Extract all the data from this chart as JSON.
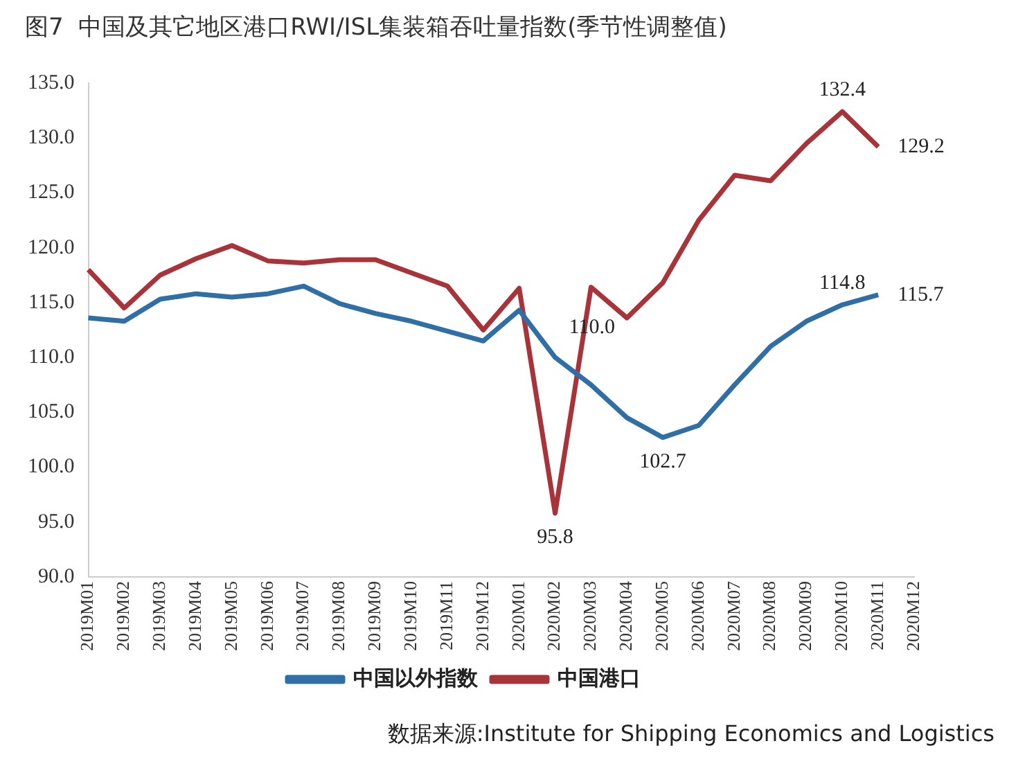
{
  "chart_data": {
    "type": "line",
    "title": "图7  中国及其它地区港口RWI/ISL集装箱吞吐量指数(季节性调整值)",
    "categories": [
      "2019M01",
      "2019M02",
      "2019M03",
      "2019M04",
      "2019M05",
      "2019M06",
      "2019M07",
      "2019M08",
      "2019M09",
      "2019M10",
      "2019M11",
      "2019M12",
      "2020M01",
      "2020M02",
      "2020M03",
      "2020M04",
      "2020M05",
      "2020M06",
      "2020M07",
      "2020M08",
      "2020M09",
      "2020M10",
      "2020M11",
      "2020M12"
    ],
    "series": [
      {
        "name": "中国以外指数",
        "color": "#2f6fa6",
        "values": [
          113.6,
          113.3,
          115.3,
          115.8,
          115.5,
          115.8,
          116.5,
          114.9,
          114.0,
          113.3,
          112.4,
          111.5,
          114.3,
          110.0,
          107.5,
          104.5,
          102.7,
          103.8,
          107.5,
          111.0,
          113.3,
          114.8,
          115.7,
          null
        ],
        "value_labels": [
          null,
          null,
          null,
          null,
          null,
          null,
          null,
          null,
          null,
          null,
          null,
          null,
          null,
          "110.0",
          null,
          null,
          "102.7",
          null,
          null,
          null,
          null,
          "114.8",
          "115.7",
          null
        ]
      },
      {
        "name": "中国港口",
        "color": "#a8343a",
        "values": [
          118.0,
          114.5,
          117.5,
          119.0,
          120.2,
          118.8,
          118.6,
          118.9,
          118.9,
          117.7,
          116.5,
          112.5,
          116.3,
          95.8,
          116.4,
          113.6,
          116.8,
          122.5,
          126.6,
          126.1,
          129.5,
          132.4,
          129.2,
          null
        ],
        "value_labels": [
          null,
          null,
          null,
          null,
          null,
          null,
          null,
          null,
          null,
          null,
          null,
          null,
          null,
          "95.8",
          null,
          null,
          null,
          null,
          null,
          null,
          null,
          "132.4",
          "129.2",
          null
        ]
      }
    ],
    "ylim": [
      90,
      135
    ],
    "yticks": [
      {
        "value": 90,
        "label": "90.0"
      },
      {
        "value": 95,
        "label": "95.0"
      },
      {
        "value": 100,
        "label": "100.0"
      },
      {
        "value": 105,
        "label": "105.0"
      },
      {
        "value": 110,
        "label": "110.0"
      },
      {
        "value": 115,
        "label": "115.0"
      },
      {
        "value": 120,
        "label": "120.0"
      },
      {
        "value": 125,
        "label": "125.0"
      },
      {
        "value": 130,
        "label": "130.0"
      },
      {
        "value": 135,
        "label": "135.0"
      }
    ],
    "grid": false,
    "legend": "bottom",
    "marker": "none",
    "line_style": "solid",
    "annotations": [
      "数据来源:Institute for Shipping Economics and Logistics"
    ]
  }
}
